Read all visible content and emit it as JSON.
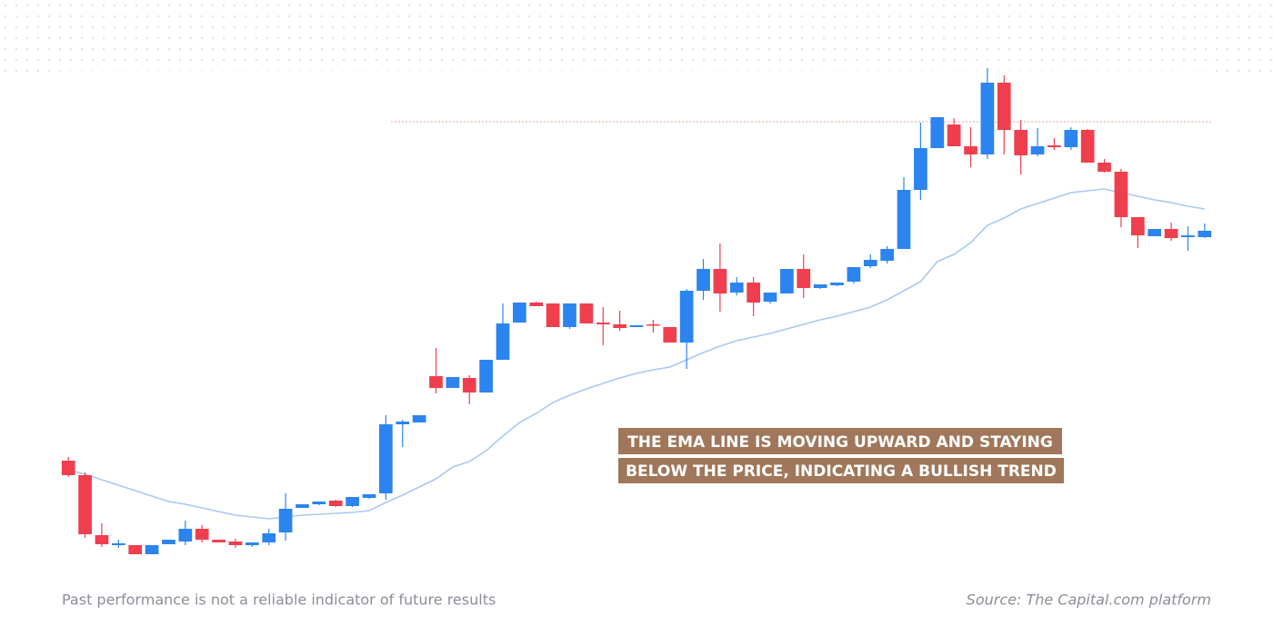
{
  "chart_data": {
    "type": "candlestick",
    "ylim": [
      0,
      560
    ],
    "up_color": "#2b84ef",
    "down_color": "#ef3f4f",
    "price_line": 486,
    "price_line_color": "#f3a0a0",
    "candles": [
      {
        "open": 113,
        "high": 117,
        "low": 95,
        "close": 97
      },
      {
        "open": 97,
        "high": 100,
        "low": 28,
        "close": 32
      },
      {
        "open": 31,
        "high": 44,
        "low": 18,
        "close": 21
      },
      {
        "open": 20,
        "high": 26,
        "low": 17,
        "close": 22
      },
      {
        "open": 20,
        "high": 20,
        "low": 10,
        "close": 10
      },
      {
        "open": 10,
        "high": 20,
        "low": 10,
        "close": 20
      },
      {
        "open": 21,
        "high": 26,
        "low": 21,
        "close": 26
      },
      {
        "open": 24,
        "high": 47,
        "low": 20,
        "close": 38
      },
      {
        "open": 38,
        "high": 42,
        "low": 23,
        "close": 26
      },
      {
        "open": 26,
        "high": 26,
        "low": 23,
        "close": 23
      },
      {
        "open": 24,
        "high": 27,
        "low": 17,
        "close": 20
      },
      {
        "open": 20,
        "high": 23,
        "low": 18,
        "close": 23
      },
      {
        "open": 23,
        "high": 38,
        "low": 20,
        "close": 33
      },
      {
        "open": 34,
        "high": 77,
        "low": 25,
        "close": 60
      },
      {
        "open": 61,
        "high": 65,
        "low": 61,
        "close": 65
      },
      {
        "open": 65,
        "high": 68,
        "low": 64,
        "close": 68
      },
      {
        "open": 69,
        "high": 70,
        "low": 62,
        "close": 63
      },
      {
        "open": 63,
        "high": 73,
        "low": 62,
        "close": 73
      },
      {
        "open": 72,
        "high": 76,
        "low": 71,
        "close": 76
      },
      {
        "open": 77,
        "high": 163,
        "low": 70,
        "close": 153
      },
      {
        "open": 153,
        "high": 158,
        "low": 128,
        "close": 156
      },
      {
        "open": 155,
        "high": 163,
        "low": 155,
        "close": 163
      },
      {
        "open": 206,
        "high": 237,
        "low": 187,
        "close": 193
      },
      {
        "open": 193,
        "high": 205,
        "low": 193,
        "close": 205
      },
      {
        "open": 204,
        "high": 207,
        "low": 175,
        "close": 188
      },
      {
        "open": 188,
        "high": 224,
        "low": 188,
        "close": 224
      },
      {
        "open": 224,
        "high": 286,
        "low": 224,
        "close": 264
      },
      {
        "open": 265,
        "high": 287,
        "low": 265,
        "close": 287
      },
      {
        "open": 287,
        "high": 288,
        "low": 283,
        "close": 283
      },
      {
        "open": 286,
        "high": 286,
        "low": 260,
        "close": 260
      },
      {
        "open": 260,
        "high": 286,
        "low": 258,
        "close": 286
      },
      {
        "open": 286,
        "high": 286,
        "low": 264,
        "close": 264
      },
      {
        "open": 265,
        "high": 282,
        "low": 240,
        "close": 263
      },
      {
        "open": 263,
        "high": 278,
        "low": 256,
        "close": 259
      },
      {
        "open": 260,
        "high": 262,
        "low": 260,
        "close": 262
      },
      {
        "open": 263,
        "high": 268,
        "low": 254,
        "close": 262
      },
      {
        "open": 260,
        "high": 260,
        "low": 243,
        "close": 243
      },
      {
        "open": 243,
        "high": 302,
        "low": 214,
        "close": 300
      },
      {
        "open": 300,
        "high": 335,
        "low": 290,
        "close": 324
      },
      {
        "open": 324,
        "high": 352,
        "low": 277,
        "close": 297
      },
      {
        "open": 298,
        "high": 315,
        "low": 295,
        "close": 309
      },
      {
        "open": 309,
        "high": 315,
        "low": 272,
        "close": 287
      },
      {
        "open": 288,
        "high": 298,
        "low": 286,
        "close": 298
      },
      {
        "open": 297,
        "high": 324,
        "low": 297,
        "close": 324
      },
      {
        "open": 324,
        "high": 340,
        "low": 292,
        "close": 303
      },
      {
        "open": 303,
        "high": 307,
        "low": 302,
        "close": 307
      },
      {
        "open": 306,
        "high": 309,
        "low": 305,
        "close": 309
      },
      {
        "open": 310,
        "high": 326,
        "low": 308,
        "close": 326
      },
      {
        "open": 327,
        "high": 340,
        "low": 325,
        "close": 334
      },
      {
        "open": 333,
        "high": 349,
        "low": 330,
        "close": 346
      },
      {
        "open": 346,
        "high": 425,
        "low": 346,
        "close": 411
      },
      {
        "open": 411,
        "high": 485,
        "low": 400,
        "close": 457
      },
      {
        "open": 457,
        "high": 491,
        "low": 457,
        "close": 491
      },
      {
        "open": 483,
        "high": 490,
        "low": 459,
        "close": 459
      },
      {
        "open": 459,
        "high": 480,
        "low": 436,
        "close": 450
      },
      {
        "open": 450,
        "high": 545,
        "low": 445,
        "close": 529
      },
      {
        "open": 529,
        "high": 537,
        "low": 450,
        "close": 477
      },
      {
        "open": 477,
        "high": 488,
        "low": 428,
        "close": 449
      },
      {
        "open": 450,
        "high": 479,
        "low": 448,
        "close": 459
      },
      {
        "open": 460,
        "high": 468,
        "low": 455,
        "close": 458
      },
      {
        "open": 458,
        "high": 480,
        "low": 455,
        "close": 477
      },
      {
        "open": 477,
        "high": 478,
        "low": 441,
        "close": 441
      },
      {
        "open": 441,
        "high": 445,
        "low": 430,
        "close": 431
      },
      {
        "open": 431,
        "high": 434,
        "low": 370,
        "close": 381
      },
      {
        "open": 381,
        "high": 381,
        "low": 347,
        "close": 361
      },
      {
        "open": 360,
        "high": 368,
        "low": 360,
        "close": 368
      },
      {
        "open": 368,
        "high": 375,
        "low": 355,
        "close": 358
      },
      {
        "open": 359,
        "high": 371,
        "low": 344,
        "close": 361
      },
      {
        "open": 359,
        "high": 374,
        "low": 358,
        "close": 366
      }
    ],
    "ema": {
      "color": "#a9c9f2",
      "values": [
        103,
        98,
        92,
        86,
        80,
        74,
        68,
        65,
        61,
        57,
        53,
        51,
        49,
        51,
        53,
        54,
        55,
        56,
        58,
        67,
        75,
        84,
        93,
        106,
        112,
        124,
        140,
        155,
        165,
        177,
        185,
        192,
        198,
        204,
        209,
        213,
        216,
        224,
        232,
        239,
        245,
        249,
        253,
        258,
        263,
        268,
        272,
        277,
        282,
        290,
        300,
        310,
        332,
        340,
        353,
        372,
        380,
        390,
        396,
        402,
        408,
        410,
        412,
        408,
        404,
        400,
        397,
        393,
        390
      ]
    },
    "annotation": [
      "THE EMA LINE IS MOVING UPWARD AND STAYING",
      "BELOW THE PRICE, INDICATING A BULLISH TREND"
    ],
    "footnote": "Past performance is not a reliable indicator of future results",
    "source": "Source: The Capital.com platform"
  }
}
